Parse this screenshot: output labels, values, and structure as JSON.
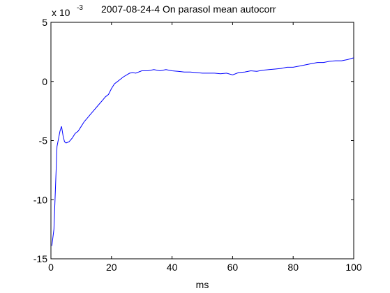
{
  "chart_data": {
    "type": "line",
    "title": "2007-08-24-4 On parasol mean autocorr",
    "xlabel": "ms",
    "ylabel": "",
    "y_multiplier_base": "x 10",
    "y_multiplier_exponent": "-3",
    "xlim": [
      0,
      100
    ],
    "ylim": [
      -15,
      5
    ],
    "xticks": [
      0,
      20,
      40,
      60,
      80,
      100
    ],
    "yticks": [
      -15,
      -10,
      -5,
      0,
      5
    ],
    "xtick_labels": [
      "0",
      "20",
      "40",
      "60",
      "80",
      "100"
    ],
    "ytick_labels": [
      "-15",
      "-10",
      "-5",
      "0",
      "5"
    ],
    "grid": false,
    "line_color": "#0000ff",
    "series": [
      {
        "x": [
          0.3,
          1,
          2,
          3,
          3.5,
          4,
          4.5,
          5,
          6,
          7,
          8,
          9,
          10,
          11,
          12,
          13,
          14,
          15,
          16,
          17,
          18,
          19,
          20,
          21,
          22,
          23,
          24,
          25,
          26,
          27,
          28,
          30,
          32,
          34,
          36,
          38,
          40,
          42,
          44,
          46,
          48,
          50,
          52,
          54,
          56,
          58,
          60,
          62,
          64,
          66,
          68,
          70,
          72,
          74,
          76,
          78,
          80,
          82,
          84,
          86,
          88,
          90,
          92,
          94,
          96,
          98,
          100
        ],
        "y": [
          -13.9,
          -12.5,
          -5.5,
          -4.2,
          -3.8,
          -4.6,
          -5.1,
          -5.2,
          -5.1,
          -4.8,
          -4.4,
          -4.2,
          -3.8,
          -3.4,
          -3.1,
          -2.8,
          -2.5,
          -2.2,
          -1.9,
          -1.6,
          -1.3,
          -1.1,
          -0.6,
          -0.2,
          0.0,
          0.2,
          0.4,
          0.55,
          0.7,
          0.75,
          0.7,
          0.9,
          0.9,
          1.0,
          0.9,
          1.0,
          0.9,
          0.85,
          0.8,
          0.8,
          0.75,
          0.7,
          0.7,
          0.7,
          0.65,
          0.7,
          0.55,
          0.75,
          0.8,
          0.9,
          0.85,
          0.95,
          1.0,
          1.05,
          1.1,
          1.2,
          1.2,
          1.3,
          1.4,
          1.5,
          1.6,
          1.6,
          1.7,
          1.75,
          1.75,
          1.85,
          2.0
        ]
      }
    ]
  }
}
